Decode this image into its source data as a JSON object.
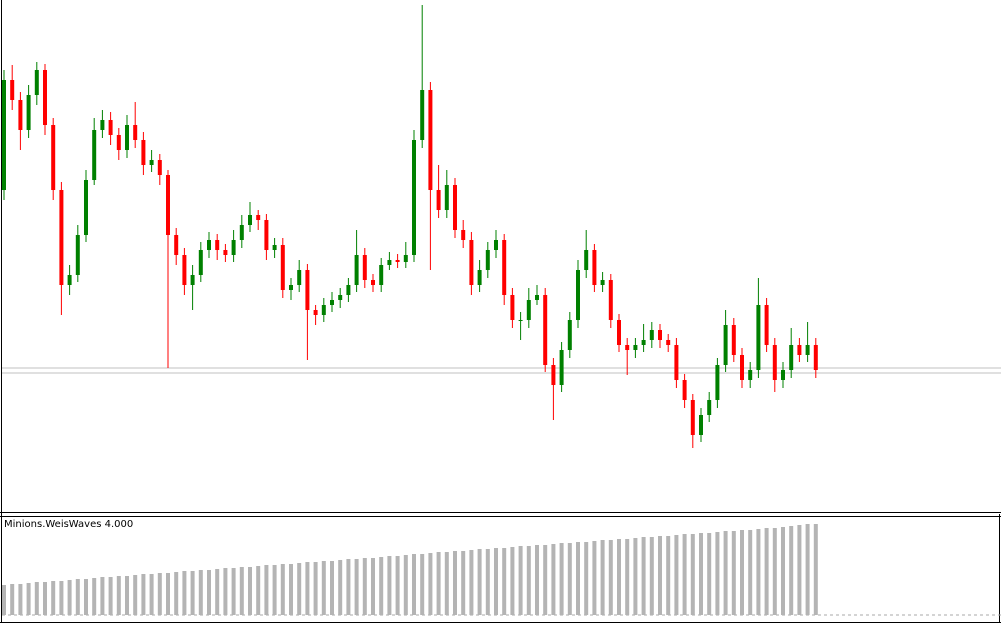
{
  "chart_data": [
    {
      "type": "candlestick",
      "up_color": "#008000",
      "down_color": "#ff0000",
      "ylim": [
        0,
        510
      ],
      "price_lines": [
        142,
        137
      ],
      "price_line_color": "#c0c0c0",
      "candles": [
        [
          320,
          440,
          310,
          430
        ],
        [
          430,
          445,
          400,
          410
        ],
        [
          410,
          418,
          360,
          380
        ],
        [
          380,
          425,
          372,
          415
        ],
        [
          415,
          448,
          405,
          440
        ],
        [
          440,
          446,
          375,
          385
        ],
        [
          385,
          392,
          310,
          320
        ],
        [
          320,
          328,
          195,
          225
        ],
        [
          225,
          245,
          215,
          235
        ],
        [
          235,
          285,
          228,
          275
        ],
        [
          275,
          340,
          268,
          330
        ],
        [
          330,
          392,
          325,
          380
        ],
        [
          380,
          400,
          372,
          390
        ],
        [
          390,
          398,
          365,
          375
        ],
        [
          375,
          382,
          350,
          360
        ],
        [
          360,
          395,
          352,
          385
        ],
        [
          385,
          408,
          362,
          370
        ],
        [
          370,
          378,
          335,
          345
        ],
        [
          345,
          360,
          338,
          350
        ],
        [
          350,
          356,
          325,
          335
        ],
        [
          335,
          340,
          142,
          275
        ],
        [
          275,
          282,
          245,
          255
        ],
        [
          255,
          262,
          215,
          225
        ],
        [
          225,
          245,
          200,
          235
        ],
        [
          235,
          268,
          228,
          260
        ],
        [
          260,
          278,
          252,
          270
        ],
        [
          270,
          276,
          250,
          260
        ],
        [
          260,
          266,
          248,
          255
        ],
        [
          255,
          280,
          248,
          270
        ],
        [
          270,
          295,
          262,
          285
        ],
        [
          285,
          308,
          278,
          295
        ],
        [
          295,
          300,
          280,
          290
        ],
        [
          290,
          296,
          250,
          260
        ],
        [
          260,
          272,
          252,
          265
        ],
        [
          265,
          272,
          212,
          220
        ],
        [
          220,
          232,
          210,
          225
        ],
        [
          225,
          250,
          218,
          240
        ],
        [
          240,
          246,
          150,
          200
        ],
        [
          200,
          205,
          185,
          195
        ],
        [
          195,
          212,
          188,
          205
        ],
        [
          205,
          218,
          198,
          210
        ],
        [
          210,
          222,
          202,
          215
        ],
        [
          215,
          232,
          208,
          225
        ],
        [
          225,
          280,
          218,
          255
        ],
        [
          255,
          262,
          222,
          230
        ],
        [
          230,
          236,
          218,
          225
        ],
        [
          225,
          252,
          218,
          245
        ],
        [
          245,
          258,
          240,
          250
        ],
        [
          250,
          256,
          242,
          248
        ],
        [
          248,
          268,
          242,
          255
        ],
        [
          255,
          380,
          248,
          370
        ],
        [
          370,
          505,
          362,
          420
        ],
        [
          420,
          428,
          240,
          320
        ],
        [
          320,
          345,
          292,
          300
        ],
        [
          300,
          340,
          292,
          325
        ],
        [
          325,
          332,
          272,
          280
        ],
        [
          280,
          290,
          262,
          270
        ],
        [
          270,
          278,
          215,
          225
        ],
        [
          225,
          250,
          218,
          240
        ],
        [
          240,
          268,
          232,
          260
        ],
        [
          260,
          280,
          252,
          270
        ],
        [
          270,
          276,
          205,
          215
        ],
        [
          215,
          222,
          182,
          190
        ],
        [
          190,
          198,
          170,
          190
        ],
        [
          190,
          222,
          182,
          210
        ],
        [
          210,
          225,
          205,
          215
        ],
        [
          215,
          222,
          138,
          145
        ],
        [
          145,
          152,
          90,
          125
        ],
        [
          125,
          168,
          118,
          160
        ],
        [
          160,
          198,
          152,
          190
        ],
        [
          190,
          250,
          182,
          240
        ],
        [
          240,
          280,
          232,
          260
        ],
        [
          260,
          266,
          218,
          225
        ],
        [
          225,
          238,
          218,
          230
        ],
        [
          230,
          236,
          182,
          190
        ],
        [
          190,
          196,
          158,
          165
        ],
        [
          165,
          172,
          135,
          160
        ],
        [
          160,
          172,
          152,
          165
        ],
        [
          165,
          186,
          158,
          170
        ],
        [
          170,
          188,
          162,
          180
        ],
        [
          180,
          186,
          162,
          170
        ],
        [
          170,
          176,
          158,
          165
        ],
        [
          165,
          172,
          122,
          130
        ],
        [
          130,
          136,
          102,
          110
        ],
        [
          110,
          116,
          62,
          75
        ],
        [
          75,
          102,
          68,
          95
        ],
        [
          95,
          118,
          88,
          110
        ],
        [
          110,
          152,
          102,
          145
        ],
        [
          145,
          200,
          138,
          185
        ],
        [
          185,
          192,
          148,
          155
        ],
        [
          155,
          162,
          122,
          130
        ],
        [
          130,
          148,
          122,
          140
        ],
        [
          140,
          232,
          132,
          205
        ],
        [
          205,
          212,
          158,
          165
        ],
        [
          165,
          172,
          118,
          130
        ],
        [
          130,
          148,
          122,
          140
        ],
        [
          140,
          182,
          132,
          165
        ],
        [
          165,
          172,
          148,
          155
        ],
        [
          155,
          188,
          148,
          165
        ],
        [
          165,
          172,
          132,
          140
        ]
      ]
    },
    {
      "type": "bar",
      "indicator_label": "Minions.WeisWaves 4.000",
      "color": "#b4b4b4",
      "ylim": [
        0,
        100
      ],
      "values": [
        30,
        31,
        31,
        32,
        33,
        33,
        34,
        34,
        35,
        36,
        36,
        37,
        38,
        38,
        39,
        39,
        40,
        41,
        41,
        42,
        42,
        43,
        44,
        44,
        45,
        45,
        46,
        47,
        47,
        48,
        48,
        49,
        50,
        50,
        51,
        51,
        52,
        53,
        53,
        54,
        54,
        55,
        56,
        56,
        57,
        57,
        58,
        59,
        59,
        60,
        61,
        61,
        62,
        63,
        63,
        64,
        64,
        65,
        66,
        66,
        67,
        67,
        68,
        69,
        69,
        70,
        70,
        71,
        72,
        72,
        73,
        73,
        74,
        75,
        75,
        76,
        76,
        77,
        78,
        78,
        79,
        79,
        80,
        81,
        81,
        82,
        82,
        83,
        84,
        84,
        85,
        85,
        86,
        87,
        87,
        88,
        89,
        90,
        91,
        91
      ]
    }
  ]
}
